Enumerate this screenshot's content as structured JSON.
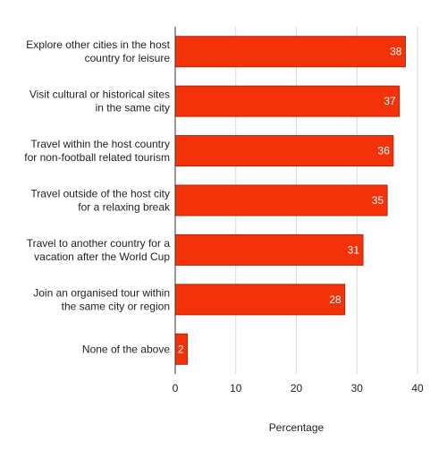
{
  "chart_data": {
    "type": "bar",
    "orientation": "horizontal",
    "categories": [
      [
        "Explore other cities in the host",
        "country for leisure"
      ],
      [
        "Visit cultural or historical sites",
        "in the same city"
      ],
      [
        "Travel within the host country",
        "for non-football related tourism"
      ],
      [
        "Travel outside of the host city",
        "for a relaxing break"
      ],
      [
        "Travel to another country for a",
        "vacation after the World Cup"
      ],
      [
        "Join an organised tour within",
        "the same city or region"
      ],
      [
        "None of the above"
      ]
    ],
    "values": [
      38,
      37,
      36,
      35,
      31,
      28,
      2
    ],
    "xlabel": "Percentage",
    "ylabel": "",
    "xlim": [
      0,
      40
    ],
    "xticks": [
      0,
      10,
      20,
      30,
      40
    ],
    "grid": "vertical",
    "legend": "none",
    "bar_color": "#f4320a",
    "bar_border_color": "#b52405",
    "value_label_color": "#ffffff"
  }
}
